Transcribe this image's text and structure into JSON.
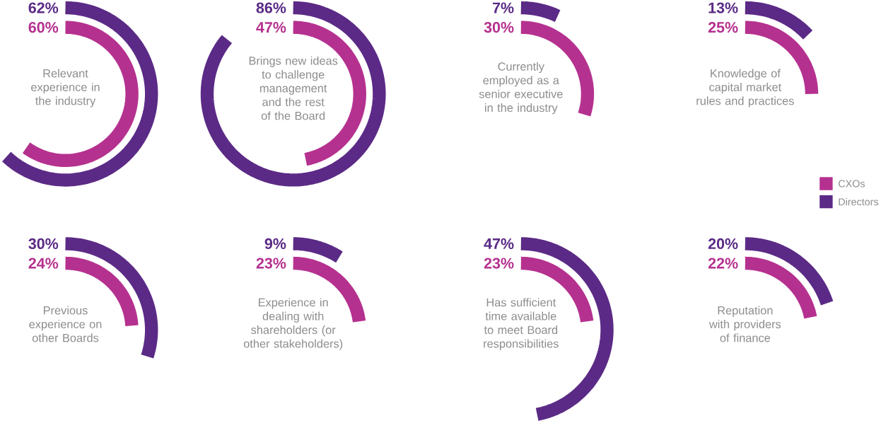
{
  "chart_data": {
    "type": "other",
    "categories": [
      "Relevant experience in the industry",
      "Brings new ideas to challenge management and the rest of the Board",
      "Currently employed as a senior executive in the industry",
      "Knowledge of capital market rules and practices",
      "Previous experience on other Boards",
      "Experience in dealing with shareholders (or other stakeholders)",
      "Has sufficient time available to meet Board responsibilities",
      "Reputation with providers of finance"
    ],
    "series": [
      {
        "name": "CXOs",
        "color": "#b5318f",
        "values": [
          60,
          47,
          30,
          25,
          24,
          23,
          23,
          22
        ],
        "value_labels": [
          "60%",
          "47%",
          "30%",
          "25%",
          "24%",
          "23%",
          "23%",
          "22%"
        ]
      },
      {
        "name": "Directors",
        "color": "#5b2a86",
        "values": [
          62,
          86,
          7,
          13,
          30,
          9,
          47,
          20
        ],
        "value_labels": [
          "62%",
          "86%",
          "7%",
          "13%",
          "30%",
          "9%",
          "47%",
          "20%"
        ]
      }
    ],
    "legend": "right"
  }
}
